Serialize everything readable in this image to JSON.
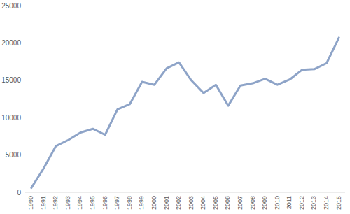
{
  "chart_data": {
    "type": "line",
    "categories": [
      "1990",
      "1991",
      "1992",
      "1993",
      "1994",
      "1995",
      "1996",
      "1997",
      "1998",
      "1999",
      "2000",
      "2001",
      "2002",
      "2003",
      "2004",
      "2005",
      "2006",
      "2007",
      "2008",
      "2009",
      "2010",
      "2011",
      "2012",
      "2013",
      "2014",
      "2015"
    ],
    "values": [
      600,
      3200,
      6200,
      7000,
      8000,
      8500,
      7700,
      11100,
      11800,
      14800,
      14400,
      16600,
      17400,
      15000,
      13300,
      14400,
      11600,
      14300,
      14600,
      15200,
      14400,
      15100,
      16400,
      16500,
      17300,
      20700
    ],
    "color": "#8ea4c8",
    "ylim": [
      0,
      25000
    ],
    "yticks": [
      0,
      5000,
      10000,
      15000,
      20000,
      25000
    ],
    "grid": false
  }
}
